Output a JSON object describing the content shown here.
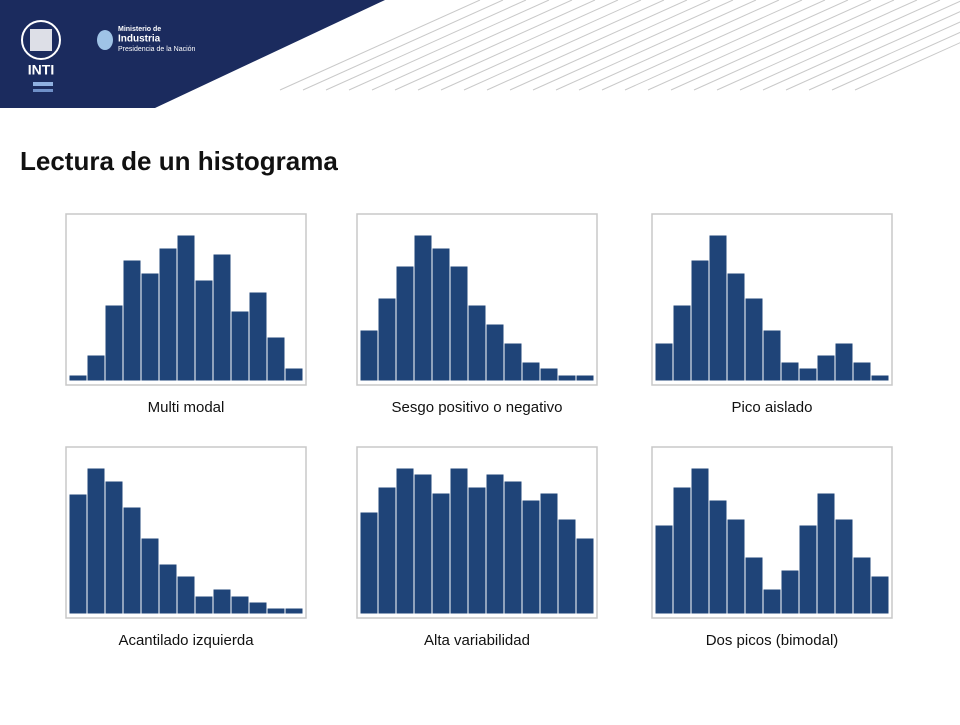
{
  "header": {
    "logo": "INTI",
    "ministry_small": "Ministerio de",
    "ministry": "Industria",
    "presidency": "Presidencia de la Nación"
  },
  "title": "Lectura de un histograma",
  "chart_data": [
    {
      "type": "bar",
      "title": "Multi modal",
      "color": "#1f4478",
      "categories": [
        null,
        null,
        null,
        null,
        null,
        null,
        null,
        null,
        null,
        null,
        null,
        null,
        null
      ],
      "values": [
        6,
        26,
        76,
        121,
        108,
        133,
        146,
        101,
        127,
        70,
        89,
        44,
        13
      ]
    },
    {
      "type": "bar",
      "title": "Sesgo positivo o negativo",
      "color": "#1f4478",
      "categories": [
        null,
        null,
        null,
        null,
        null,
        null,
        null,
        null,
        null,
        null,
        null,
        null,
        null
      ],
      "values": [
        51,
        83,
        115,
        146,
        133,
        115,
        76,
        57,
        38,
        19,
        13,
        6,
        6
      ]
    },
    {
      "type": "bar",
      "title": "Pico aislado",
      "color": "#1f4478",
      "categories": [
        null,
        null,
        null,
        null,
        null,
        null,
        null,
        null,
        null,
        null,
        null,
        null,
        null
      ],
      "values": [
        38,
        76,
        121,
        146,
        108,
        83,
        51,
        19,
        13,
        26,
        38,
        19,
        6
      ]
    },
    {
      "type": "bar",
      "title": "Acantilado izquierda",
      "color": "#1f4478",
      "categories": [
        null,
        null,
        null,
        null,
        null,
        null,
        null,
        null,
        null,
        null,
        null,
        null,
        null
      ],
      "values": [
        120,
        146,
        133,
        107,
        76,
        50,
        38,
        18,
        25,
        18,
        12,
        6,
        6
      ]
    },
    {
      "type": "bar",
      "title": "Alta variabilidad",
      "color": "#1f4478",
      "categories": [
        null,
        null,
        null,
        null,
        null,
        null,
        null,
        null,
        null,
        null,
        null,
        null,
        null
      ],
      "values": [
        102,
        127,
        146,
        140,
        121,
        146,
        127,
        140,
        133,
        114,
        121,
        95,
        76
      ]
    },
    {
      "type": "bar",
      "title": "Dos picos (bimodal)",
      "color": "#1f4478",
      "categories": [
        null,
        null,
        null,
        null,
        null,
        null,
        null,
        null,
        null,
        null,
        null,
        null,
        null
      ],
      "values": [
        89,
        127,
        146,
        114,
        95,
        57,
        25,
        44,
        89,
        121,
        95,
        57,
        38
      ]
    }
  ]
}
